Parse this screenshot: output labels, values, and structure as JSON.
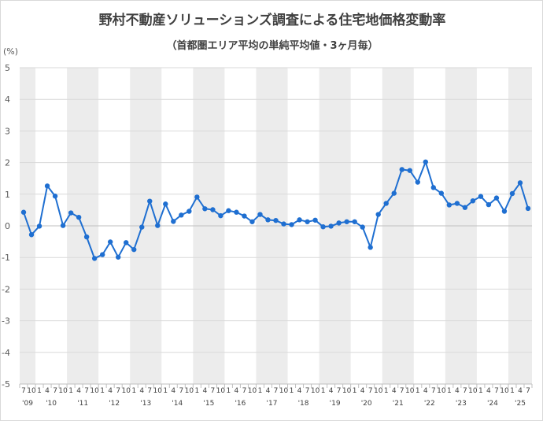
{
  "chart_data": {
    "type": "line",
    "title": "野村不動産ソリューションズ調査による住宅地価格変動率",
    "subtitle": "（首都圏エリア平均の単純平均値・3ヶ月毎）",
    "ylabel": "(%)",
    "xlabel": "",
    "ylim": [
      -5,
      5
    ],
    "yticks": [
      "5",
      "4",
      "3",
      "2",
      "1",
      "0",
      "-1",
      "-2",
      "-3",
      "-4",
      "-5"
    ],
    "grid": true,
    "legend": "none",
    "line_color": "#1f6fd1",
    "band_color": "#ececec",
    "x": [
      "2009-07",
      "2009-10",
      "2010-01",
      "2010-04",
      "2010-07",
      "2010-10",
      "2011-01",
      "2011-04",
      "2011-07",
      "2011-10",
      "2012-01",
      "2012-04",
      "2012-07",
      "2012-10",
      "2013-01",
      "2013-04",
      "2013-07",
      "2013-10",
      "2014-01",
      "2014-04",
      "2014-07",
      "2014-10",
      "2015-01",
      "2015-04",
      "2015-07",
      "2015-10",
      "2016-01",
      "2016-04",
      "2016-07",
      "2016-10",
      "2017-01",
      "2017-04",
      "2017-07",
      "2017-10",
      "2018-01",
      "2018-04",
      "2018-07",
      "2018-10",
      "2019-01",
      "2019-04",
      "2019-07",
      "2019-10",
      "2020-01",
      "2020-04",
      "2020-07",
      "2020-10",
      "2021-01",
      "2021-04",
      "2021-07",
      "2021-10",
      "2022-01",
      "2022-04",
      "2022-07",
      "2022-10",
      "2023-01",
      "2023-04",
      "2023-07",
      "2023-10",
      "2024-01",
      "2024-04",
      "2024-07",
      "2024-10",
      "2025-01",
      "2025-04",
      "2025-07"
    ],
    "month_labels": [
      "7",
      "10",
      "1",
      "4",
      "7",
      "10",
      "1",
      "4",
      "7",
      "10",
      "1",
      "4",
      "7",
      "10",
      "1",
      "4",
      "7",
      "10",
      "1",
      "4",
      "7",
      "10",
      "1",
      "4",
      "7",
      "10",
      "1",
      "4",
      "7",
      "10",
      "1",
      "4",
      "7",
      "10",
      "1",
      "4",
      "7",
      "10",
      "1",
      "4",
      "7",
      "10",
      "1",
      "4",
      "7",
      "10",
      "1",
      "4",
      "7",
      "10",
      "1",
      "4",
      "7",
      "10",
      "1",
      "4",
      "7",
      "10",
      "1",
      "4",
      "7",
      "10",
      "1",
      "4",
      "7"
    ],
    "years": [
      "'09",
      "'10",
      "'11",
      "'12",
      "'13",
      "'14",
      "'15",
      "'16",
      "'17",
      "'18",
      "'19",
      "'20",
      "'21",
      "'22",
      "'23",
      "'24",
      "'25"
    ],
    "series": [
      {
        "values": [
          0.43,
          -0.28,
          -0.01,
          1.26,
          0.94,
          0.01,
          0.41,
          0.27,
          -0.35,
          -1.03,
          -0.91,
          -0.51,
          -0.99,
          -0.53,
          -0.75,
          -0.04,
          0.78,
          0.01,
          0.69,
          0.14,
          0.34,
          0.46,
          0.91,
          0.54,
          0.51,
          0.32,
          0.48,
          0.43,
          0.31,
          0.13,
          0.36,
          0.19,
          0.17,
          0.06,
          0.04,
          0.19,
          0.13,
          0.18,
          -0.03,
          -0.01,
          0.09,
          0.13,
          0.13,
          -0.04,
          -0.68,
          0.36,
          0.71,
          1.03,
          1.78,
          1.75,
          1.38,
          2.02,
          1.21,
          1.03,
          0.66,
          0.71,
          0.58,
          0.79,
          0.93,
          0.67,
          0.88,
          0.46,
          1.02,
          1.36,
          0.55
        ]
      }
    ]
  }
}
